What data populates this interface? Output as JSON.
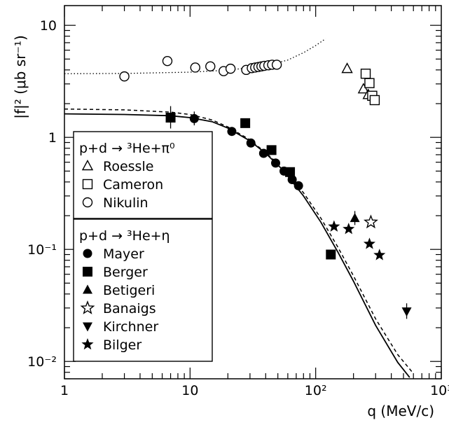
{
  "chart_data": {
    "type": "scatter",
    "x_scale": "log",
    "y_scale": "log",
    "xlim": [
      1,
      1000
    ],
    "ylim": [
      0.007,
      15
    ],
    "xlabel": "q (MeV/c)",
    "ylabel": "|f|² (μb sr⁻¹)",
    "x_ticks": [
      {
        "value": 1,
        "label": "1"
      },
      {
        "value": 10,
        "label": "10"
      },
      {
        "value": 100,
        "label": "10²"
      },
      {
        "value": 1000,
        "label": "10³"
      }
    ],
    "y_ticks": [
      {
        "value": 0.01,
        "label": "10⁻²"
      },
      {
        "value": 0.1,
        "label": "10⁻¹"
      },
      {
        "value": 1,
        "label": "1"
      },
      {
        "value": 10,
        "label": "10"
      }
    ],
    "grid": false,
    "legend_groups": [
      {
        "title": "p+d → ³He+π⁰",
        "entries": [
          {
            "name": "Roessle",
            "marker": "triangle-open"
          },
          {
            "name": "Cameron",
            "marker": "square-open"
          },
          {
            "name": "Nikulin",
            "marker": "circle-open"
          }
        ]
      },
      {
        "title": "p+d → ³He+η",
        "entries": [
          {
            "name": "Mayer",
            "marker": "circle-filled"
          },
          {
            "name": "Berger",
            "marker": "square-filled"
          },
          {
            "name": "Betigeri",
            "marker": "triangle-filled"
          },
          {
            "name": "Banaigs",
            "marker": "star-open"
          },
          {
            "name": "Kirchner",
            "marker": "triangle-down-filled"
          },
          {
            "name": "Bilger",
            "marker": "star-filled"
          }
        ]
      }
    ],
    "series": [
      {
        "name": "Roessle",
        "marker": "triangle-open",
        "points": [
          [
            178,
            4.1
          ],
          [
            240,
            2.7
          ],
          [
            262,
            2.4
          ]
        ]
      },
      {
        "name": "Cameron",
        "marker": "square-open",
        "points": [
          [
            250,
            3.7
          ],
          [
            268,
            3.05
          ],
          [
            282,
            2.35
          ],
          [
            295,
            2.15
          ]
        ]
      },
      {
        "name": "Nikulin",
        "marker": "circle-open",
        "points": [
          [
            3.0,
            3.5
          ],
          [
            6.6,
            4.8
          ],
          [
            11,
            4.2
          ],
          [
            14.5,
            4.3
          ],
          [
            18.5,
            3.9
          ],
          [
            21,
            4.1
          ],
          [
            28,
            4.0
          ],
          [
            31,
            4.15
          ],
          [
            33,
            4.2
          ],
          [
            35,
            4.25
          ],
          [
            37,
            4.3
          ],
          [
            39,
            4.35
          ],
          [
            42,
            4.4
          ],
          [
            45,
            4.45
          ],
          [
            49,
            4.45
          ]
        ]
      },
      {
        "name": "Mayer",
        "marker": "circle-filled",
        "points": [
          [
            10.8,
            1.47
          ],
          [
            21.5,
            1.13
          ],
          [
            30.5,
            0.89
          ],
          [
            38.5,
            0.72
          ],
          [
            48,
            0.59
          ],
          [
            56,
            0.5
          ],
          [
            65,
            0.42
          ],
          [
            73,
            0.37
          ]
        ]
      },
      {
        "name": "Berger",
        "marker": "square-filled",
        "points": [
          [
            7.0,
            1.5
          ],
          [
            27.5,
            1.34
          ],
          [
            44.5,
            0.77
          ],
          [
            62.5,
            0.49
          ],
          [
            132,
            0.09
          ]
        ]
      },
      {
        "name": "Betigeri",
        "marker": "triangle-filled",
        "points": [
          [
            205,
            0.19
          ]
        ]
      },
      {
        "name": "Banaigs",
        "marker": "star-open",
        "points": [
          [
            275,
            0.175
          ]
        ]
      },
      {
        "name": "Kirchner",
        "marker": "triangle-down-filled",
        "points": [
          [
            530,
            0.028
          ]
        ]
      },
      {
        "name": "Bilger",
        "marker": "star-filled",
        "points": [
          [
            140,
            0.16
          ],
          [
            183,
            0.152
          ],
          [
            268,
            0.112
          ],
          [
            322,
            0.089
          ]
        ]
      }
    ],
    "error_bars": [
      {
        "series": "Berger",
        "x": 7.0,
        "lo": 1.2,
        "hi": 1.9
      },
      {
        "series": "Mayer",
        "x": 10.8,
        "lo": 1.28,
        "hi": 1.7
      },
      {
        "series": "Kirchner",
        "x": 530,
        "lo": 0.024,
        "hi": 0.033
      },
      {
        "series": "Betigeri",
        "x": 205,
        "lo": 0.165,
        "hi": 0.22
      }
    ],
    "curves": [
      {
        "style": "dotted",
        "points": [
          [
            1,
            3.7
          ],
          [
            3,
            3.72
          ],
          [
            10,
            3.82
          ],
          [
            20,
            3.98
          ],
          [
            40,
            4.35
          ],
          [
            60,
            4.9
          ],
          [
            80,
            5.7
          ],
          [
            100,
            6.6
          ],
          [
            120,
            7.6
          ]
        ]
      },
      {
        "style": "dashed",
        "points": [
          [
            1,
            1.79
          ],
          [
            3,
            1.76
          ],
          [
            7,
            1.68
          ],
          [
            10,
            1.6
          ],
          [
            15,
            1.43
          ],
          [
            20,
            1.24
          ],
          [
            30,
            0.95
          ],
          [
            40,
            0.73
          ],
          [
            55,
            0.53
          ],
          [
            80,
            0.32
          ],
          [
            110,
            0.19
          ],
          [
            150,
            0.105
          ],
          [
            200,
            0.058
          ],
          [
            300,
            0.024
          ],
          [
            450,
            0.0115
          ],
          [
            600,
            0.0078
          ]
        ]
      },
      {
        "style": "solid",
        "points": [
          [
            1,
            1.62
          ],
          [
            3,
            1.6
          ],
          [
            7,
            1.56
          ],
          [
            10,
            1.5
          ],
          [
            15,
            1.38
          ],
          [
            20,
            1.21
          ],
          [
            30,
            0.93
          ],
          [
            40,
            0.72
          ],
          [
            55,
            0.51
          ],
          [
            80,
            0.3
          ],
          [
            110,
            0.175
          ],
          [
            150,
            0.095
          ],
          [
            200,
            0.052
          ],
          [
            300,
            0.021
          ],
          [
            450,
            0.0098
          ],
          [
            560,
            0.0072
          ]
        ]
      }
    ]
  }
}
